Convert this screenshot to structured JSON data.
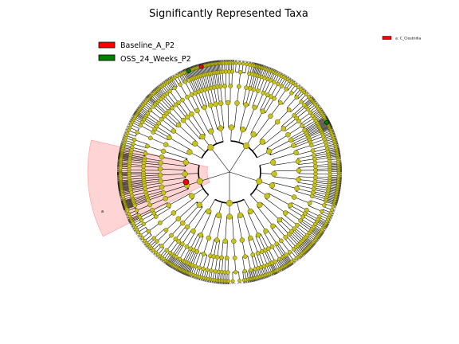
{
  "title": "Significantly Represented Taxa",
  "legend": [
    {
      "label": "Baseline_A_P2",
      "color": "#ff0000"
    },
    {
      "label": "OSS_24_Weeks_P2",
      "color": "#008000"
    }
  ],
  "clade_legend": [
    {
      "label": "a: C_Clostridia",
      "color": "#ff0000"
    }
  ],
  "highlight": {
    "letter": "a",
    "color": "#ff0000"
  },
  "colors": {
    "node_default": "#c8c21e",
    "node_edge": "#505000",
    "branch": "#000000",
    "sector_fill": "#ffcccc",
    "sector_edge": "#ff9999"
  }
}
